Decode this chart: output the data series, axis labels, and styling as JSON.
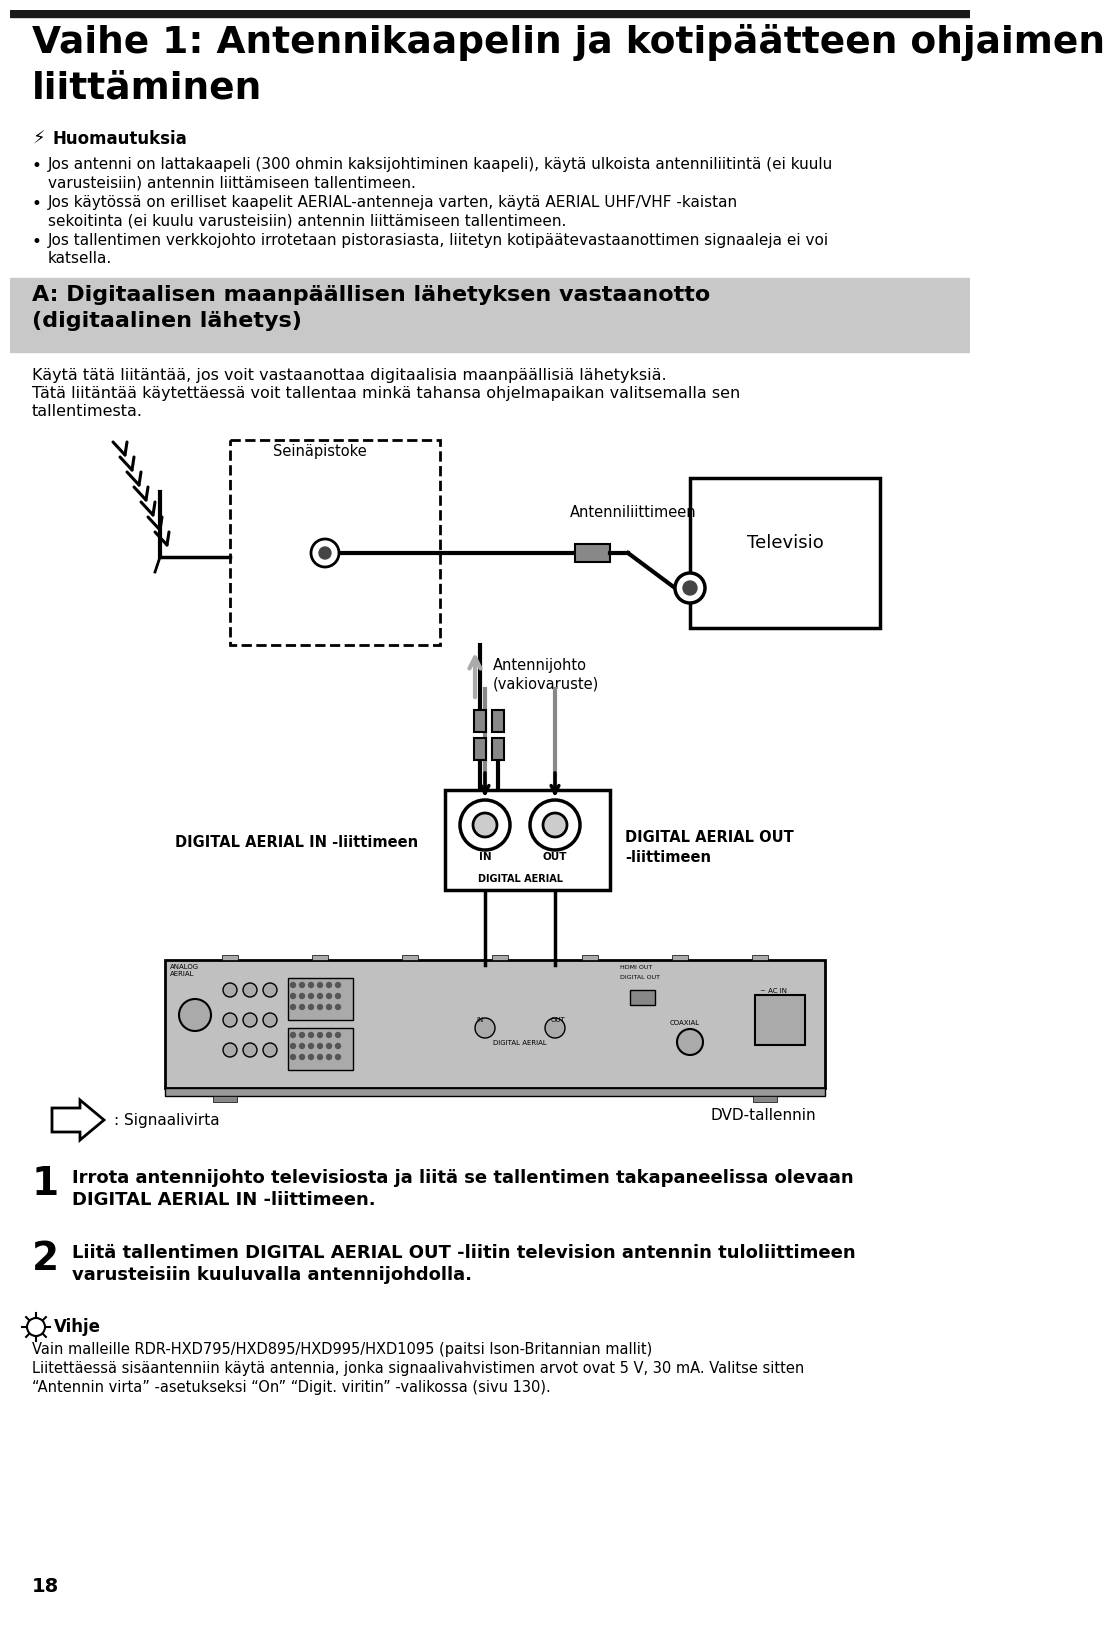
{
  "title_line1": "Vaihe 1: Antennikaapelin ja kotipäätteen ohjaimen",
  "title_line2": "liittäminen",
  "warning_header": "Huomautuksia",
  "bullet1_line1": "Jos antenni on lattakaapeli (300 ohmin kaksijohtiminen kaapeli), käytä ulkoista antenniliitintä (ei kuulu",
  "bullet1_line2": "varusteisiin) antennin liittämiseen tallentimeen.",
  "bullet2_line1": "Jos käytössä on erilliset kaapelit AERIAL-antenneja varten, käytä AERIAL UHF/VHF -kaistan",
  "bullet2_line2": "sekoitinta (ei kuulu varusteisiin) antennin liittämiseen tallentimeen.",
  "bullet3_line1": "Jos tallentimen verkkojohto irrotetaan pistorasiasta, liitetyn kotipäätevastaanottimen signaaleja ei voi",
  "bullet3_line2": "katsella.",
  "section_header1": "A: Digitaalisen maanpäällisen lähetyksen vastaanotto",
  "section_header2": "(digitaalinen lähetys)",
  "section_desc1": "Käytä tätä liitäntää, jos voit vastaanottaa digitaalisia maanpäällisiä lähetyksiä.",
  "section_desc2": "Tätä liitäntää käytettäessä voit tallentaa minkä tahansa ohjelmapaikan valitsemalla sen",
  "section_desc3": "tallentimesta.",
  "label_seinapistoke": "Seinäpistoke",
  "label_televisio": "Televisio",
  "label_antenniliittimeen": "Antenniliittimeen",
  "label_antennijohto_line1": "Antennijohto",
  "label_antennijohto_line2": "(vakiovaruste)",
  "label_digital_in": "DIGITAL AERIAL IN -liittimeen",
  "label_digital_out1": "DIGITAL AERIAL OUT",
  "label_digital_out2": "-liittimeen",
  "label_dvd": "DVD-tallennin",
  "label_signaali": ": Signaalivirta",
  "step1_num": "1",
  "step1_line1": "Irrota antennijohto televisiosta ja liitä se tallentimen takapaneelissa olevaan",
  "step1_line2": "DIGITAL AERIAL IN -liittimeen.",
  "step2_num": "2",
  "step2_line1": "Liitä tallentimen DIGITAL AERIAL OUT -liitin television antennin tuloliittimeen",
  "step2_line2": "varusteisiin kuuluvalla antennijohdolla.",
  "tip_header": "Vihje",
  "tip_text1": "Vain malleille RDR-HXD795/HXD895/HXD995/HXD1095 (paitsi Ison-Britannian mallit)",
  "tip_text2": "Liitettäessä sisäantenniin käytä antennia, jonka signaalivahvistimen arvot ovat 5 V, 30 mA. Valitse sitten",
  "tip_text3": "“Antennin virta” -asetukseksi “On” “Digit. viritin” -valikossa (sivu 130).",
  "page_num": "18",
  "bg_color": "#ffffff",
  "section_bg": "#c8c8c8",
  "bar_color": "#1a1a1a"
}
